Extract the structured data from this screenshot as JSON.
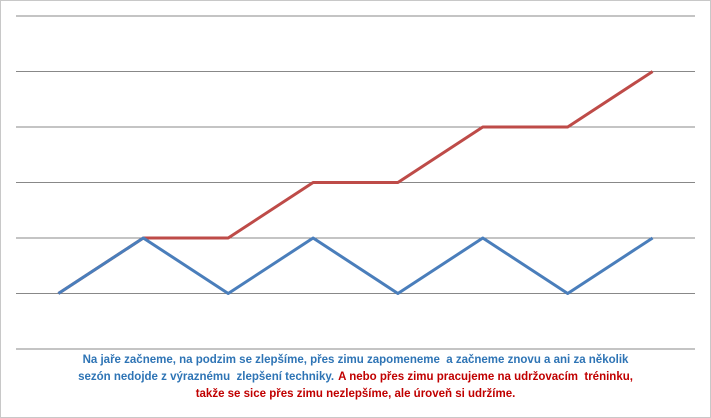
{
  "chart_data": {
    "type": "line",
    "categories": [
      null,
      null,
      null,
      null,
      null,
      null,
      null,
      null
    ],
    "series": [
      {
        "color": "#be4b48",
        "values": [
          1,
          2,
          2,
          3,
          3,
          4,
          4,
          5
        ]
      },
      {
        "color": "#4a7ebb",
        "values": [
          1,
          2,
          1,
          2,
          1,
          2,
          1,
          2
        ]
      }
    ],
    "ylim": [
      0,
      6
    ],
    "yticks": [
      0,
      1,
      2,
      3,
      4,
      5,
      6
    ],
    "grid": true,
    "annotations": [
      [
        {
          "text": "Na jaře začneme, na podzim se zlepšíme, přes zimu zapomeneme  a začneme znovu a ani za několik",
          "color": "#2e74b5"
        }
      ],
      [
        {
          "text": "sezón nedojde z výraznému  zlepšení techniky.",
          "color": "#2e74b5"
        },
        {
          "text": "A nebo přes zimu pracujeme na udržovacím  tréninku,",
          "color": "#c00000"
        }
      ],
      [
        {
          "text": "takže se sice přes zimu nezlepšíme, ale úroveň si udržíme.",
          "color": "#c00000"
        }
      ]
    ]
  }
}
